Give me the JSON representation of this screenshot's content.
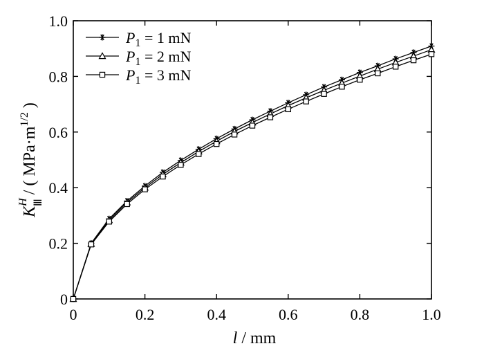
{
  "chart_data": {
    "type": "line",
    "title": "",
    "xlabel": {
      "symbol": "l",
      "sep": " / ",
      "unit": "mm"
    },
    "ylabel": {
      "symbol": "K",
      "sup": "H",
      "sub": "Ⅲ",
      "unit_prefix": " / ( MPa·m",
      "unit_exp": "1/2",
      "unit_suffix": " )"
    },
    "xlim": [
      0,
      1.0
    ],
    "ylim": [
      0,
      1.0
    ],
    "xticks": [
      "0",
      "0.2",
      "0.4",
      "0.6",
      "0.8",
      "1.0"
    ],
    "yticks": [
      "0",
      "0.2",
      "0.4",
      "0.6",
      "0.8",
      "1.0"
    ],
    "grid": false,
    "legend_position": "top-left",
    "x": [
      0,
      0.05,
      0.1,
      0.15,
      0.2,
      0.25,
      0.3,
      0.35,
      0.4,
      0.45,
      0.5,
      0.55,
      0.6,
      0.65,
      0.7,
      0.75,
      0.8,
      0.85,
      0.9,
      0.95,
      1.0
    ],
    "series": [
      {
        "legend": {
          "symbol": "P",
          "sub": "1",
          "text": " = 1 mN"
        },
        "marker": "asterisk",
        "values": [
          0,
          0.2,
          0.288,
          0.352,
          0.406,
          0.455,
          0.498,
          0.538,
          0.576,
          0.611,
          0.644,
          0.675,
          0.705,
          0.734,
          0.762,
          0.788,
          0.814,
          0.838,
          0.863,
          0.886,
          0.909
        ]
      },
      {
        "legend": {
          "symbol": "P",
          "sub": "1",
          "text": " = 2 mN"
        },
        "marker": "triangle",
        "values": [
          0,
          0.198,
          0.283,
          0.347,
          0.4,
          0.448,
          0.49,
          0.53,
          0.567,
          0.602,
          0.634,
          0.665,
          0.695,
          0.723,
          0.75,
          0.776,
          0.801,
          0.826,
          0.85,
          0.873,
          0.896
        ]
      },
      {
        "legend": {
          "symbol": "P",
          "sub": "1",
          "text": " = 3 mN"
        },
        "marker": "square",
        "values": [
          0,
          0.196,
          0.278,
          0.341,
          0.394,
          0.44,
          0.482,
          0.521,
          0.557,
          0.591,
          0.623,
          0.653,
          0.682,
          0.71,
          0.737,
          0.763,
          0.788,
          0.811,
          0.835,
          0.858,
          0.88
        ]
      }
    ]
  }
}
